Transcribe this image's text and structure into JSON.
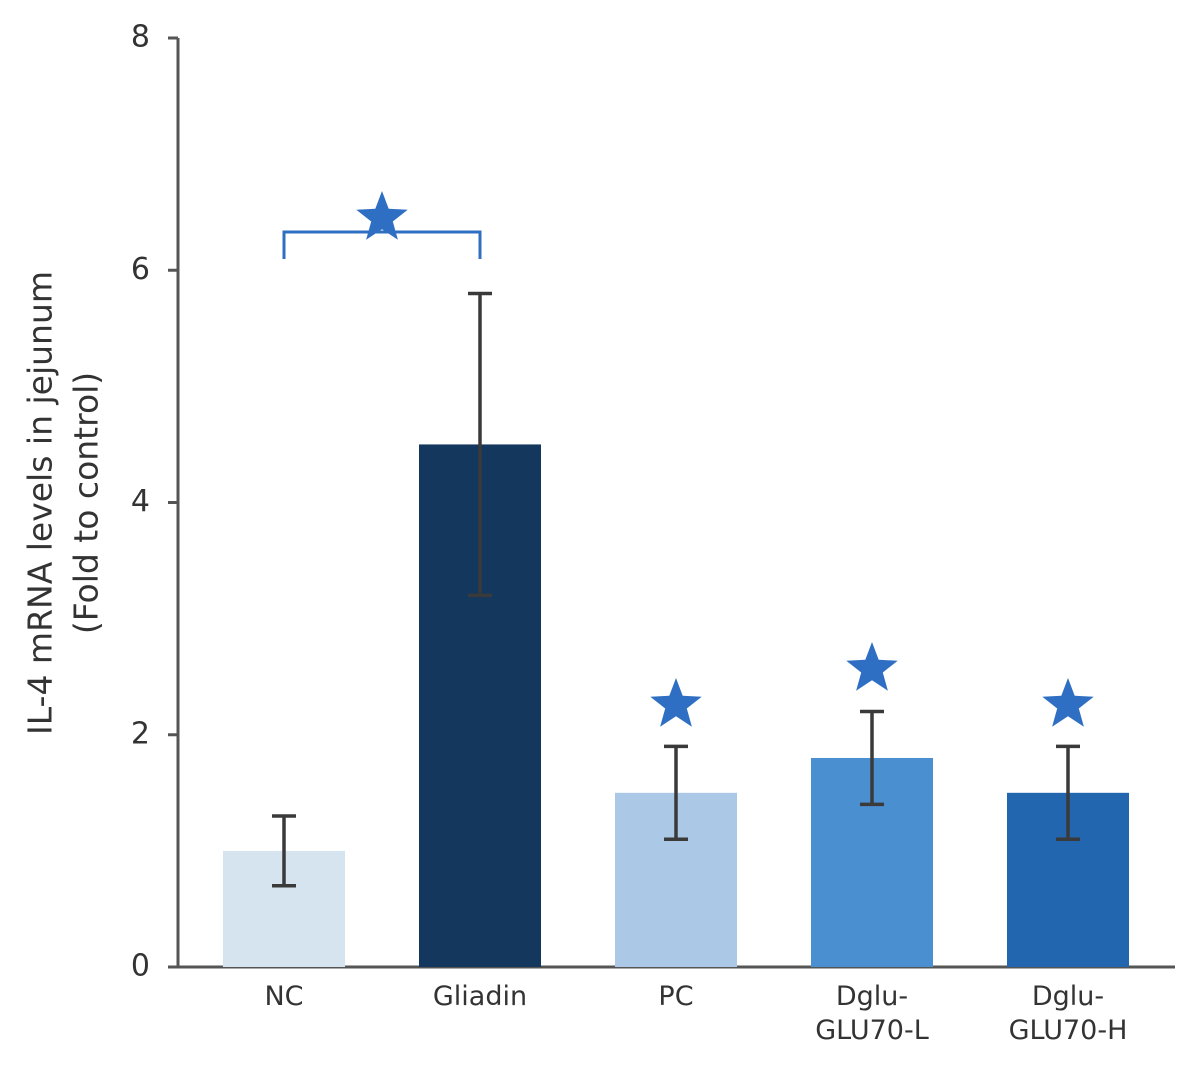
{
  "chart_data": {
    "type": "bar",
    "ylabel": [
      "IL-4 mRNA levels in jejunum",
      "(Fold to control)"
    ],
    "categories": [
      "NC",
      "Gliadin",
      "PC",
      "Dglu-\nGLU70-L",
      "Dglu-\nGLU70-H"
    ],
    "values": [
      1.0,
      4.5,
      1.5,
      1.8,
      1.5
    ],
    "errors": [
      0.3,
      1.3,
      0.4,
      0.4,
      0.4
    ],
    "colors": [
      "#d6e4f0",
      "#14375e",
      "#abc9e6",
      "#4a8fd0",
      "#2166ae"
    ],
    "ylim": [
      0,
      8
    ],
    "yticks": [
      0,
      2,
      4,
      6,
      8
    ],
    "grid": false
  }
}
